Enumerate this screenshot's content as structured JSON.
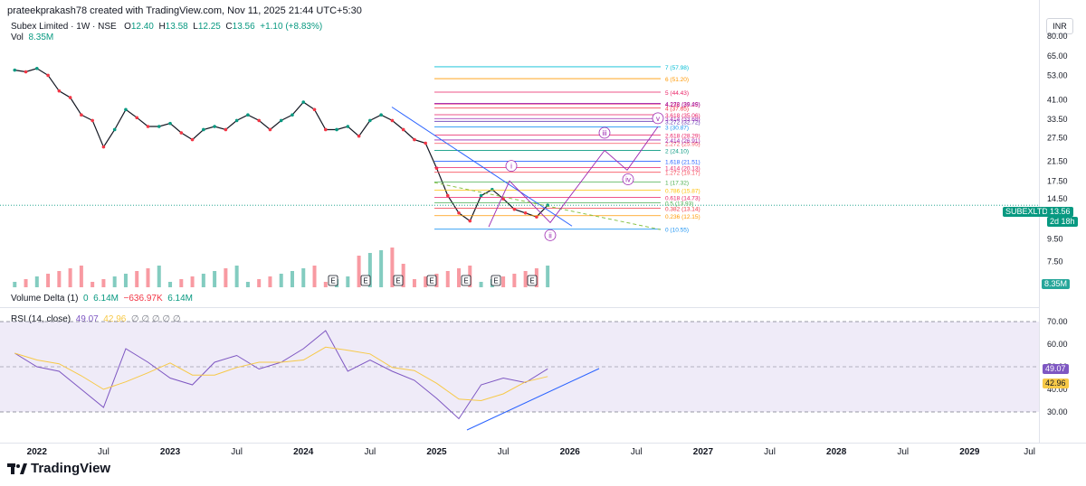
{
  "header": {
    "created_by": "prateekprakash78 created with TradingView.com, Nov 11, 2025 21:44 UTC+5:30"
  },
  "symbol": {
    "name": "Subex Limited · 1W · NSE",
    "open_label": "O",
    "open": "12.40",
    "high_label": "H",
    "high": "13.58",
    "low_label": "L",
    "low": "12.25",
    "close_label": "C",
    "close": "13.56",
    "change": "+1.10 (+8.83%)"
  },
  "volume": {
    "label": "Vol",
    "value": "8.35M"
  },
  "currency": "INR",
  "price_tag": {
    "ticker": "SUBEXLTD",
    "price": "13.56",
    "countdown": "2d 18h",
    "volume_tag": "8.35M"
  },
  "volume_delta": {
    "label": "Volume Delta (1)",
    "v1": "0",
    "v2": "6.14M",
    "v3": "−636.97K",
    "v4": "6.14M"
  },
  "rsi": {
    "label": "RSI (14, close)",
    "value": "49.07",
    "ma_value": "42.96",
    "hidden_values": "∅ ∅ ∅ ∅ ∅",
    "tag_rsi": "49.07",
    "tag_ma": "42.96"
  },
  "colors": {
    "up": "#089981",
    "down": "#f23645",
    "rsi": "#7e57c2",
    "rsi_ma": "#f7c948",
    "fib_blue": "#2962ff",
    "wave": "#9c27b0"
  },
  "earnings_marker": "E",
  "wave_labels": [
    "i",
    "ii",
    "iii",
    "iv",
    "v"
  ],
  "fib_levels": [
    {
      "label": "0 (10.55)",
      "color": "#2196f3"
    },
    {
      "label": "0.236 (12.15)",
      "color": "#ff9800"
    },
    {
      "label": "0.382 (13.14)",
      "color": "#f23645"
    },
    {
      "label": "0.5 (13.93)",
      "color": "#4caf50"
    },
    {
      "label": "0.618 (14.73)",
      "color": "#e91e63"
    },
    {
      "label": "0.786 (15.87)",
      "color": "#ffc107"
    },
    {
      "label": "1 (17.32)",
      "color": "#4caf50"
    },
    {
      "label": "1.272 (19.17)",
      "color": "#f7525f"
    },
    {
      "label": "1.414 (20.13)",
      "color": "#e91e63"
    },
    {
      "label": "1.618 (21.51)",
      "color": "#2962ff"
    },
    {
      "label": "2 (24.10)",
      "color": "#089981"
    },
    {
      "label": "2.272 (25.95)",
      "color": "#f7525f"
    },
    {
      "label": "2.414 (26.91)",
      "color": "#9c27b0"
    },
    {
      "label": "2.618 (28.29)",
      "color": "#e91e63"
    },
    {
      "label": "3 (30.87)",
      "color": "#2196f3"
    },
    {
      "label": "3.272 (32.72)",
      "color": "#673ab7"
    },
    {
      "label": "3.414 (33.68)",
      "color": "#9c27b0"
    },
    {
      "label": "3.618 (35.06)",
      "color": "#e91e63"
    },
    {
      "label": "4 (37.65)",
      "color": "#f23645"
    },
    {
      "label": "4.236 (39.25)",
      "color": "#e91e63"
    },
    {
      "label": "4.272 (39.49)",
      "color": "#9c27b0"
    },
    {
      "label": "5 (44.43)",
      "color": "#e91e63"
    },
    {
      "label": "6 (51.20)",
      "color": "#ff9800"
    },
    {
      "label": "7 (57.98)",
      "color": "#00bcd4"
    }
  ],
  "chart_data": {
    "type": "line",
    "title": "",
    "price_axis_ticks": [
      "80.00",
      "65.00",
      "53.00",
      "41.00",
      "33.50",
      "27.50",
      "21.50",
      "17.50",
      "14.50",
      "11.50",
      "9.50",
      "7.50"
    ],
    "rsi_axis_ticks": [
      "70.00",
      "60.00",
      "50.00",
      "40.00",
      "30.00"
    ],
    "time_axis_ticks": [
      "2022",
      "Jul",
      "2023",
      "Jul",
      "2024",
      "Jul",
      "2025",
      "Jul",
      "2026",
      "Jul",
      "2027",
      "Jul",
      "2028",
      "Jul",
      "2029",
      "Jul"
    ],
    "scale": "log",
    "ylim": [
      6.8,
      80
    ],
    "series": [
      {
        "name": "SUBEXLTD",
        "x": [
          "2021-11",
          "2021-12",
          "2022-01",
          "2022-02",
          "2022-03",
          "2022-04",
          "2022-05",
          "2022-06",
          "2022-07",
          "2022-08",
          "2022-09",
          "2022-10",
          "2022-11",
          "2022-12",
          "2023-01",
          "2023-02",
          "2023-03",
          "2023-04",
          "2023-05",
          "2023-06",
          "2023-07",
          "2023-08",
          "2023-09",
          "2023-10",
          "2023-11",
          "2023-12",
          "2024-01",
          "2024-02",
          "2024-03",
          "2024-04",
          "2024-05",
          "2024-06",
          "2024-07",
          "2024-08",
          "2024-09",
          "2024-10",
          "2024-11",
          "2024-12",
          "2025-01",
          "2025-02",
          "2025-03",
          "2025-04",
          "2025-05",
          "2025-06",
          "2025-07",
          "2025-08",
          "2025-09",
          "2025-10",
          "2025-11"
        ],
        "values": [
          56,
          55,
          57,
          53,
          45,
          42,
          35,
          33,
          25,
          30,
          37,
          34,
          31,
          31,
          32,
          29,
          27,
          30,
          31,
          30,
          33,
          35,
          33,
          30,
          33,
          35,
          40,
          37,
          30,
          30,
          31,
          28,
          33,
          35,
          33,
          30,
          27,
          26,
          20,
          15,
          12.5,
          11.5,
          15,
          16,
          14.5,
          13,
          12.5,
          12,
          13.56
        ]
      },
      {
        "name": "RSI (14, close)",
        "x": [
          "2021-11",
          "2022-01",
          "2022-03",
          "2022-05",
          "2022-07",
          "2022-09",
          "2022-11",
          "2023-01",
          "2023-03",
          "2023-05",
          "2023-07",
          "2023-09",
          "2023-11",
          "2024-01",
          "2024-03",
          "2024-05",
          "2024-07",
          "2024-09",
          "2024-11",
          "2025-01",
          "2025-03",
          "2025-05",
          "2025-07",
          "2025-09",
          "2025-11"
        ],
        "values": [
          56,
          50,
          48,
          40,
          32,
          58,
          52,
          45,
          42,
          52,
          55,
          49,
          52,
          58,
          66,
          48,
          53,
          48,
          44,
          36,
          27,
          42,
          45,
          43,
          49.07
        ]
      }
    ],
    "annotations": [
      "E",
      "E",
      "E",
      "E",
      "E",
      "E",
      "E"
    ]
  }
}
